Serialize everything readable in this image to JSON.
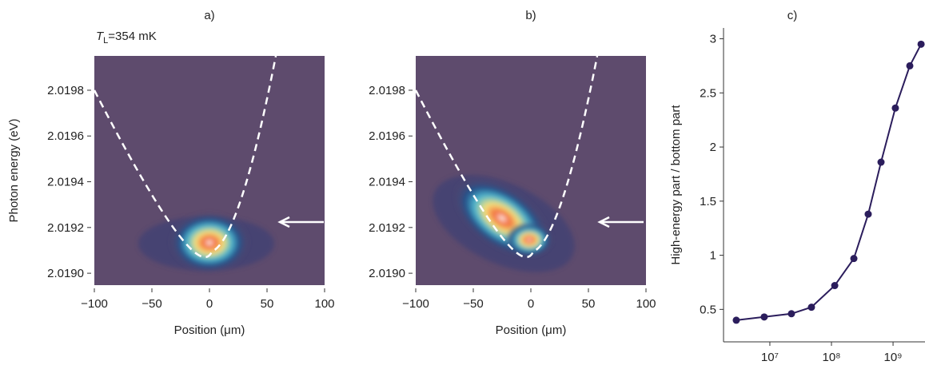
{
  "chart_data": [
    {
      "type": "heatmap",
      "panel_label": "a)",
      "annotation": {
        "symbol": "T",
        "subscript": "L",
        "text": "=354 mK"
      },
      "x_label": "Position (μm)",
      "y_label": "Photon energy (eV)",
      "xlim": [
        -100,
        100
      ],
      "xticks": [
        {
          "value": -100,
          "label": "−100"
        },
        {
          "value": -50,
          "label": "−50"
        },
        0,
        50,
        100
      ],
      "ylim": [
        2.018948,
        2.01995
      ],
      "yticks": [
        {
          "value": 2.019,
          "label": "2.0190"
        },
        {
          "value": 2.0192,
          "label": "2.0192"
        },
        {
          "value": 2.0194,
          "label": "2.0194"
        },
        {
          "value": 2.0196,
          "label": "2.0196"
        },
        {
          "value": 2.0198,
          "label": "2.0198"
        }
      ]
    },
    {
      "type": "heatmap",
      "panel_label": "b)",
      "x_label": "Position (μm)",
      "xlim": [
        -100,
        100
      ],
      "xticks": [
        {
          "value": -100,
          "label": "−100"
        },
        {
          "value": -50,
          "label": "−50"
        },
        0,
        50,
        100
      ],
      "ylim": [
        2.018948,
        2.01995
      ],
      "yticks": [
        {
          "value": 2.019,
          "label": "2.0190"
        },
        {
          "value": 2.0192,
          "label": "2.0192"
        },
        {
          "value": 2.0194,
          "label": "2.0194"
        },
        {
          "value": 2.0196,
          "label": "2.0196"
        },
        {
          "value": 2.0198,
          "label": "2.0198"
        }
      ]
    },
    {
      "type": "line",
      "panel_label": "c)",
      "y_label": "High-energy part / bottom part",
      "log_x": true,
      "color": "#2b1d5c",
      "x": [
        2850000,
        8100000,
        22400000,
        47300000,
        113000000,
        231000000,
        395000000,
        638000000,
        1090000000,
        1870000000,
        2850000000
      ],
      "values": [
        0.4,
        0.43,
        0.46,
        0.52,
        0.72,
        0.97,
        1.38,
        1.86,
        2.36,
        2.75,
        2.95
      ],
      "xlim": [
        1770000,
        3300000000
      ],
      "xticks": [
        {
          "value": 10000000,
          "label": "10⁷"
        },
        {
          "value": 100000000,
          "label": "10⁸"
        },
        {
          "value": 1000000000,
          "label": "10⁹"
        }
      ],
      "ylim": [
        0.2,
        3.1
      ],
      "yticks": [
        0.5,
        1.0,
        1.5,
        2.0,
        2.5,
        3.0
      ]
    }
  ]
}
